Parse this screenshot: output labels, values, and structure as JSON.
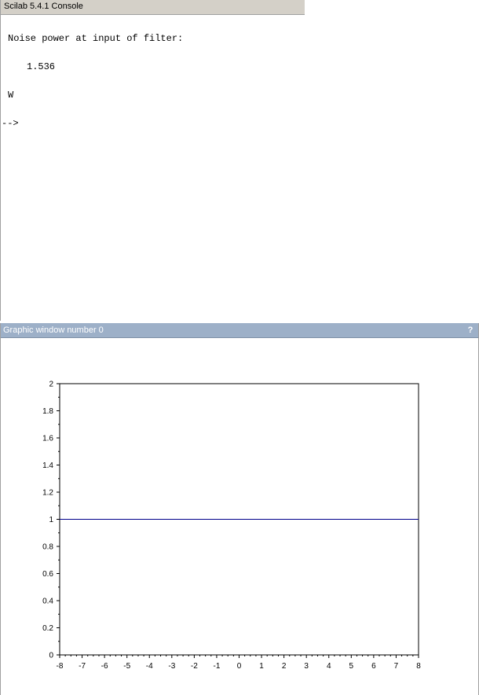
{
  "console": {
    "title": "Scilab 5.4.1 Console",
    "lines": [
      "Noise power at input of filter:",
      "1.536",
      "W",
      "-->"
    ]
  },
  "graphic": {
    "title": "Graphic window number 0",
    "help_label": "?"
  },
  "colors": {
    "line": "#00008b"
  },
  "chart_data": {
    "type": "line",
    "x": [
      -8,
      8
    ],
    "y": [
      1,
      1
    ],
    "xlim": [
      -8,
      8
    ],
    "ylim": [
      0,
      2
    ],
    "xticks": [
      -8,
      -7,
      -6,
      -5,
      -4,
      -3,
      -2,
      -1,
      0,
      1,
      2,
      3,
      4,
      5,
      6,
      7,
      8
    ],
    "yticks": [
      0,
      0.2,
      0.4,
      0.6,
      0.8,
      1,
      1.2,
      1.4,
      1.6,
      1.8,
      2
    ],
    "grid": false
  }
}
